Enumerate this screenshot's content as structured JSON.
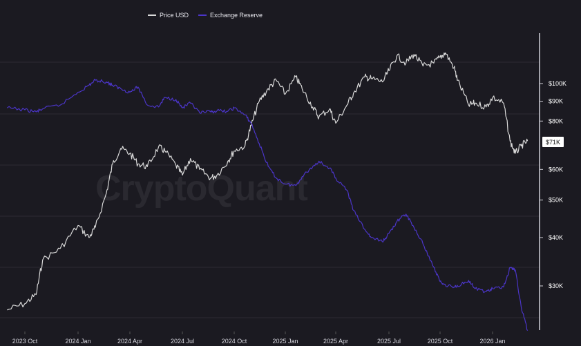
{
  "chart_data": {
    "type": "line",
    "watermark": "CryptoQuant",
    "legend": [
      {
        "name": "Price USD",
        "color": "#d9d9d9"
      },
      {
        "name": "Exchange Reserve",
        "color": "#4b35c8"
      }
    ],
    "legend_position": "top-center",
    "x_ticks": [
      "2023 Oct",
      "2024 Jan",
      "2024 Apr",
      "2024 Jul",
      "2024 Oct",
      "2025 Jan",
      "2025 Apr",
      "2025 Jul",
      "2025 Oct",
      "2026 Jan"
    ],
    "y_ticks": [
      "$100K",
      "$90K",
      "$80K",
      "$60K",
      "$50K",
      "$40K",
      "$30K"
    ],
    "y_scale": "log",
    "current_value_label": "$71K",
    "grid": true,
    "series": [
      {
        "name": "Price USD",
        "color": "#d9d9d9",
        "x": [
          "2023-09",
          "2023-10",
          "2023-10-20",
          "2023-11",
          "2023-12",
          "2024-01",
          "2024-01-20",
          "2024-02",
          "2024-02-20",
          "2024-03",
          "2024-03-15",
          "2024-04",
          "2024-04-15",
          "2024-05",
          "2024-05-20",
          "2024-06",
          "2024-06-20",
          "2024-07",
          "2024-07-15",
          "2024-08",
          "2024-08-20",
          "2024-09",
          "2024-09-20",
          "2024-10",
          "2024-10-20",
          "2024-11",
          "2024-11-15",
          "2024-12",
          "2024-12-15",
          "2025-01",
          "2025-01-20",
          "2025-02",
          "2025-02-20",
          "2025-03",
          "2025-03-20",
          "2025-04",
          "2025-04-20",
          "2025-05",
          "2025-05-20",
          "2025-06",
          "2025-06-20",
          "2025-07",
          "2025-07-15",
          "2025-08",
          "2025-08-15",
          "2025-09",
          "2025-09-20",
          "2025-10",
          "2025-10-10",
          "2025-10-25",
          "2025-11",
          "2025-11-20",
          "2025-12",
          "2025-12-20",
          "2026-01",
          "2026-01-20",
          "2026-02",
          "2026-02-10",
          "2026-02-20",
          "2026-03"
        ],
        "values": [
          26000,
          27000,
          28500,
          35000,
          37500,
          43000,
          40000,
          42500,
          52000,
          62000,
          68000,
          66000,
          62000,
          61000,
          68500,
          67000,
          61500,
          58000,
          64000,
          60000,
          57000,
          58000,
          63000,
          67000,
          69000,
          78000,
          90000,
          97000,
          102000,
          94000,
          104000,
          97000,
          87000,
          82000,
          86000,
          79000,
          88000,
          94500,
          104000,
          103000,
          101000,
          108000,
          118000,
          113000,
          119000,
          111000,
          113000,
          117000,
          120000,
          110000,
          102000,
          88000,
          89000,
          87000,
          92000,
          89000,
          71000,
          66000,
          69000,
          71000
        ]
      },
      {
        "name": "Exchange Reserve",
        "color": "#4b35c8",
        "x": [
          "2023-09",
          "2023-10",
          "2023-10-20",
          "2023-11",
          "2023-12",
          "2024-01",
          "2024-01-20",
          "2024-02",
          "2024-02-20",
          "2024-03",
          "2024-03-15",
          "2024-04",
          "2024-04-15",
          "2024-05",
          "2024-05-20",
          "2024-06",
          "2024-06-20",
          "2024-07",
          "2024-07-15",
          "2024-08",
          "2024-08-20",
          "2024-09",
          "2024-09-20",
          "2024-10",
          "2024-10-20",
          "2024-11",
          "2024-11-15",
          "2024-12",
          "2024-12-15",
          "2025-01",
          "2025-01-20",
          "2025-02",
          "2025-02-20",
          "2025-03",
          "2025-03-20",
          "2025-04",
          "2025-04-20",
          "2025-05",
          "2025-05-20",
          "2025-06",
          "2025-06-20",
          "2025-07",
          "2025-07-15",
          "2025-08",
          "2025-08-15",
          "2025-09",
          "2025-09-20",
          "2025-10",
          "2025-10-10",
          "2025-10-25",
          "2025-11",
          "2025-11-20",
          "2025-12",
          "2025-12-20",
          "2026-01",
          "2026-01-20",
          "2026-02",
          "2026-02-10",
          "2026-02-20",
          "2026-03"
        ],
        "values": [
          86500,
          85500,
          84500,
          86000,
          88000,
          95000,
          99000,
          102000,
          101000,
          99000,
          97000,
          95000,
          98000,
          88000,
          87000,
          92000,
          91000,
          86500,
          89000,
          84000,
          84500,
          85000,
          84800,
          86500,
          83000,
          79000,
          70000,
          61000,
          57000,
          55000,
          54500,
          57500,
          61000,
          63000,
          60500,
          57000,
          53000,
          47000,
          42000,
          40000,
          39000,
          41000,
          44000,
          46000,
          42500,
          38500,
          33500,
          30800,
          30200,
          29800,
          30000,
          31000,
          29500,
          29000,
          29500,
          29800,
          33500,
          33000,
          26500,
          23000
        ]
      }
    ]
  }
}
